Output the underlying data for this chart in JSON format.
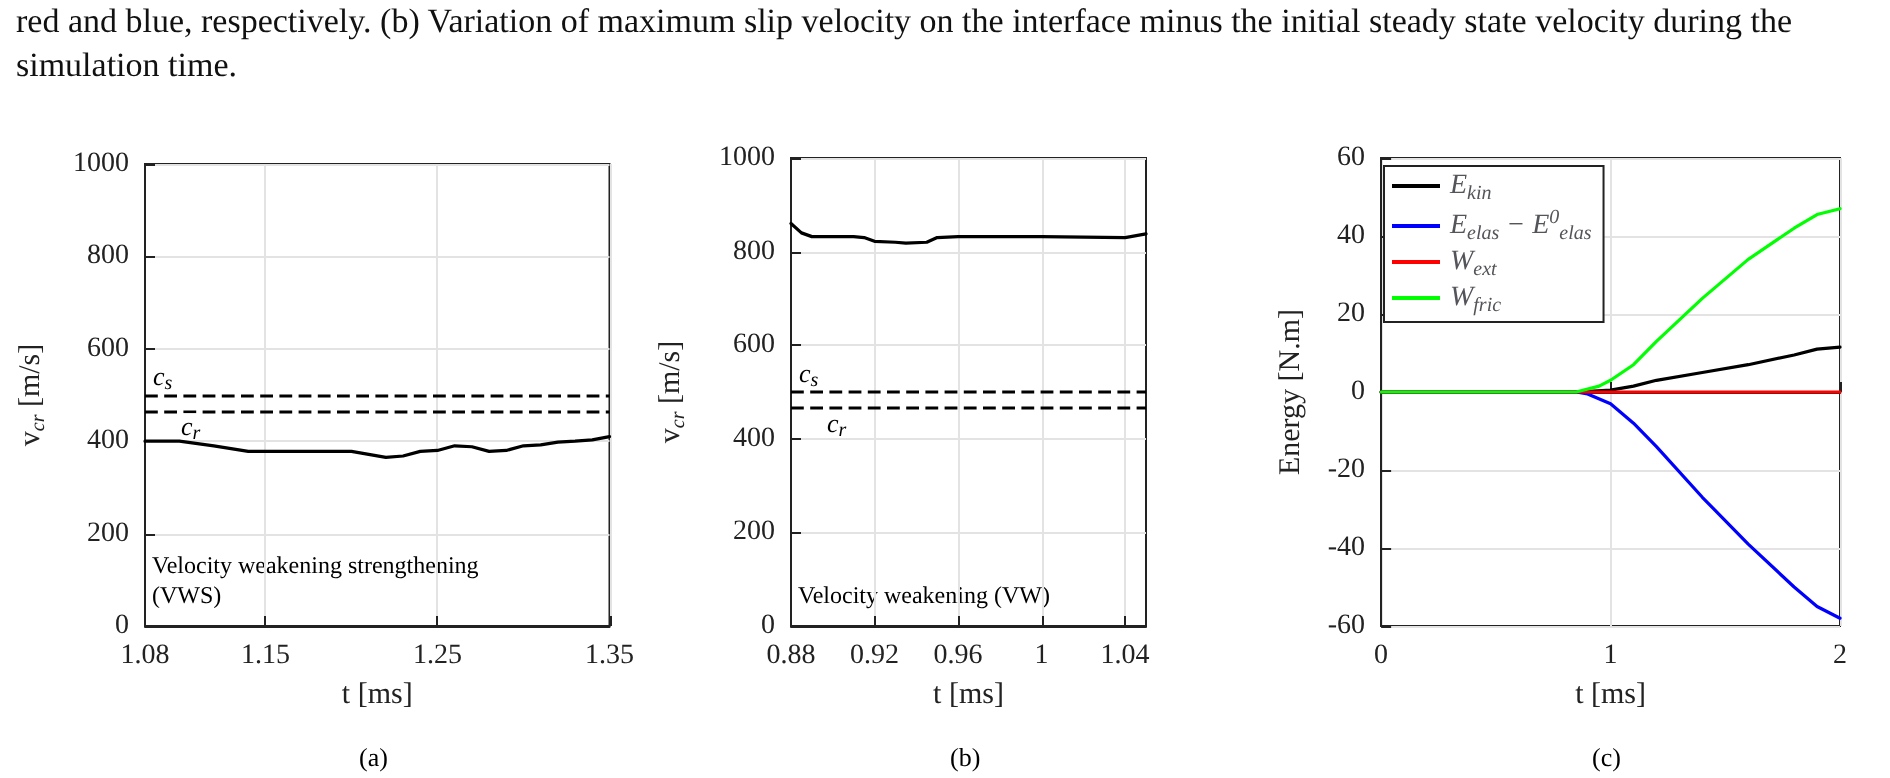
{
  "chart_data": [
    {
      "type": "line",
      "xlabel": "t [ms]",
      "ylabel": "v$_{cr}$ [m/s]",
      "marker": "none",
      "line_style": "solid",
      "grid": true,
      "legend": false,
      "annotations": [
        "red and blue, respectively. (b) Variation of maximum slip velocity on the interface minus the initial steady state velocity during the simulation time.",
        "Velocity weakening strengthening (VWS)",
        "(a)"
      ],
      "xlim": [
        1.08,
        1.35
      ],
      "xticks": [
        1.08,
        1.15,
        1.25,
        1.35
      ],
      "ylim": [
        0,
        1000
      ],
      "yticks": [
        0,
        200,
        400,
        600,
        800,
        1000
      ],
      "ref_lines": [
        {
          "axis": "y",
          "value": 500,
          "label": "c$_{s}$",
          "color": "#000000",
          "line_style": "dashed"
        },
        {
          "axis": "y",
          "value": 465,
          "label": "c$_{r}$",
          "color": "#000000",
          "line_style": "dashed"
        }
      ],
      "series": [
        {
          "color": "#000000",
          "x": [
            1.08,
            1.1,
            1.12,
            1.14,
            1.16,
            1.2,
            1.22,
            1.23,
            1.24,
            1.25,
            1.26,
            1.27,
            1.28,
            1.29,
            1.3,
            1.31,
            1.32,
            1.33,
            1.34,
            1.35
          ],
          "values": [
            400,
            400,
            390,
            378,
            378,
            378,
            365,
            368,
            378,
            380,
            390,
            388,
            378,
            380,
            390,
            392,
            398,
            400,
            403,
            410
          ]
        }
      ]
    },
    {
      "type": "line",
      "xlabel": "t [ms]",
      "ylabel": "v$_{cr}$ [m/s]",
      "marker": "none",
      "line_style": "solid",
      "grid": true,
      "legend": false,
      "annotations": [
        "Velocity weakening (VW)",
        "(b)"
      ],
      "xlim": [
        0.88,
        1.05
      ],
      "xticks": [
        0.88,
        0.92,
        0.96,
        1,
        1.04
      ],
      "ylim": [
        0,
        1000
      ],
      "yticks": [
        0,
        200,
        400,
        600,
        800,
        1000
      ],
      "ref_lines": [
        {
          "axis": "y",
          "value": 500,
          "label": "c$_{s}$",
          "color": "#000000",
          "line_style": "dashed"
        },
        {
          "axis": "y",
          "value": 465,
          "label": "c$_{r}$",
          "color": "#000000",
          "line_style": "dashed"
        }
      ],
      "series": [
        {
          "color": "#000000",
          "x": [
            0.88,
            0.885,
            0.89,
            0.91,
            0.915,
            0.92,
            0.93,
            0.935,
            0.945,
            0.95,
            0.96,
            1.0,
            1.04,
            1.05
          ],
          "values": [
            860,
            840,
            832,
            832,
            830,
            822,
            820,
            818,
            820,
            830,
            832,
            832,
            830,
            838
          ]
        }
      ]
    },
    {
      "type": "line",
      "xlabel": "t [ms]",
      "ylabel": "Energy [N.m]",
      "marker": "none",
      "line_style": "solid",
      "grid": true,
      "legend": "top left",
      "annotations": [
        "(c)"
      ],
      "xlim": [
        0,
        2
      ],
      "xticks": [
        0,
        1,
        2
      ],
      "ylim": [
        -60,
        60
      ],
      "yticks": [
        -60,
        -40,
        -20,
        0,
        20,
        40,
        60
      ],
      "series": [
        {
          "name": "E$_{kin}$",
          "color": "#000000",
          "x": [
            0,
            0.85,
            1.0,
            1.1,
            1.2,
            1.4,
            1.6,
            1.8,
            1.9,
            2.0
          ],
          "values": [
            0,
            0,
            0.5,
            1.5,
            3,
            5,
            7,
            9.5,
            11,
            11.5
          ]
        },
        {
          "name": "E$_{elas}$ − E$^{0}$$_{elas}$",
          "color": "#0000ff",
          "x": [
            0,
            0.85,
            0.9,
            1.0,
            1.1,
            1.2,
            1.4,
            1.6,
            1.8,
            1.9,
            2.0
          ],
          "values": [
            0,
            0,
            -0.5,
            -3,
            -8,
            -14,
            -27,
            -39,
            -50,
            -55,
            -58
          ]
        },
        {
          "name": "W$_{ext}$",
          "color": "#ff0000",
          "x": [
            0,
            1,
            2
          ],
          "values": [
            0,
            0,
            0
          ]
        },
        {
          "name": "W$_{fric}$",
          "color": "#00ff00",
          "x": [
            0,
            0.85,
            0.95,
            1.0,
            1.1,
            1.2,
            1.4,
            1.6,
            1.8,
            1.9,
            2.0
          ],
          "values": [
            0,
            0,
            1.5,
            3,
            7,
            13,
            24,
            34,
            42,
            45.5,
            47
          ]
        }
      ]
    }
  ]
}
